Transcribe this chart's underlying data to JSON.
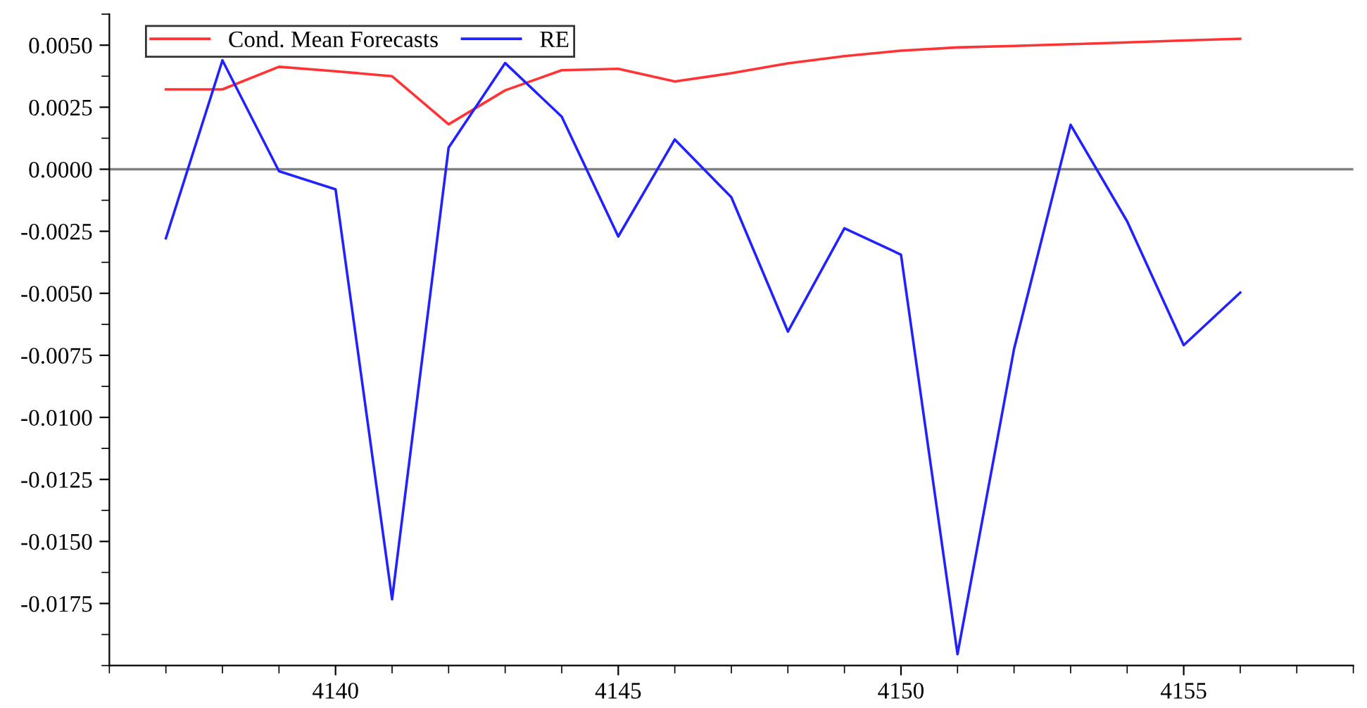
{
  "chart_data": {
    "type": "line",
    "x": [
      4137,
      4138,
      4139,
      4140,
      4141,
      4142,
      4143,
      4144,
      4145,
      4146,
      4147,
      4148,
      4149,
      4150,
      4151,
      4152,
      4153,
      4154,
      4155,
      4156
    ],
    "series": [
      {
        "name": "Cond. Mean Forecasts",
        "color": "#ff3333",
        "values": [
          0.00322,
          0.00322,
          0.00413,
          0.00395,
          0.00375,
          0.00181,
          0.00318,
          0.00399,
          0.00405,
          0.00354,
          0.00387,
          0.00427,
          0.00456,
          0.00478,
          0.00491,
          0.00497,
          0.00504,
          0.00511,
          0.00519,
          0.00526
        ]
      },
      {
        "name": "RE",
        "color": "#2222ff",
        "values": [
          -0.00278,
          0.00439,
          -8e-05,
          -0.00081,
          -0.01733,
          0.00087,
          0.00428,
          0.00212,
          -0.00271,
          0.0012,
          -0.00113,
          -0.00654,
          -0.00238,
          -0.00344,
          -0.01954,
          -0.00724,
          0.00179,
          -0.0021,
          -0.00709,
          -0.00497
        ]
      }
    ],
    "xlim": [
      4136,
      4158
    ],
    "xticks": [
      4140,
      4145,
      4150,
      4155
    ],
    "ylim": [
      -0.02,
      0.00625
    ],
    "yticks": [
      {
        "value": 0.005,
        "label": "0.0050"
      },
      {
        "value": 0.0025,
        "label": "0.0025"
      },
      {
        "value": 0,
        "label": "0.0000"
      },
      {
        "value": -0.0025,
        "label": "-0.0025"
      },
      {
        "value": -0.005,
        "label": "-0.0050"
      },
      {
        "value": -0.0075,
        "label": "-0.0075"
      },
      {
        "value": -0.01,
        "label": "-0.0100"
      },
      {
        "value": -0.0125,
        "label": "-0.0125"
      },
      {
        "value": -0.015,
        "label": "-0.0150"
      },
      {
        "value": -0.0175,
        "label": "-0.0175"
      }
    ],
    "ref_lines": [
      {
        "axis": "y",
        "value": 0,
        "color": "#808080"
      }
    ],
    "legend": "top left",
    "grid": false,
    "marker": "none",
    "line_style": "solid"
  }
}
